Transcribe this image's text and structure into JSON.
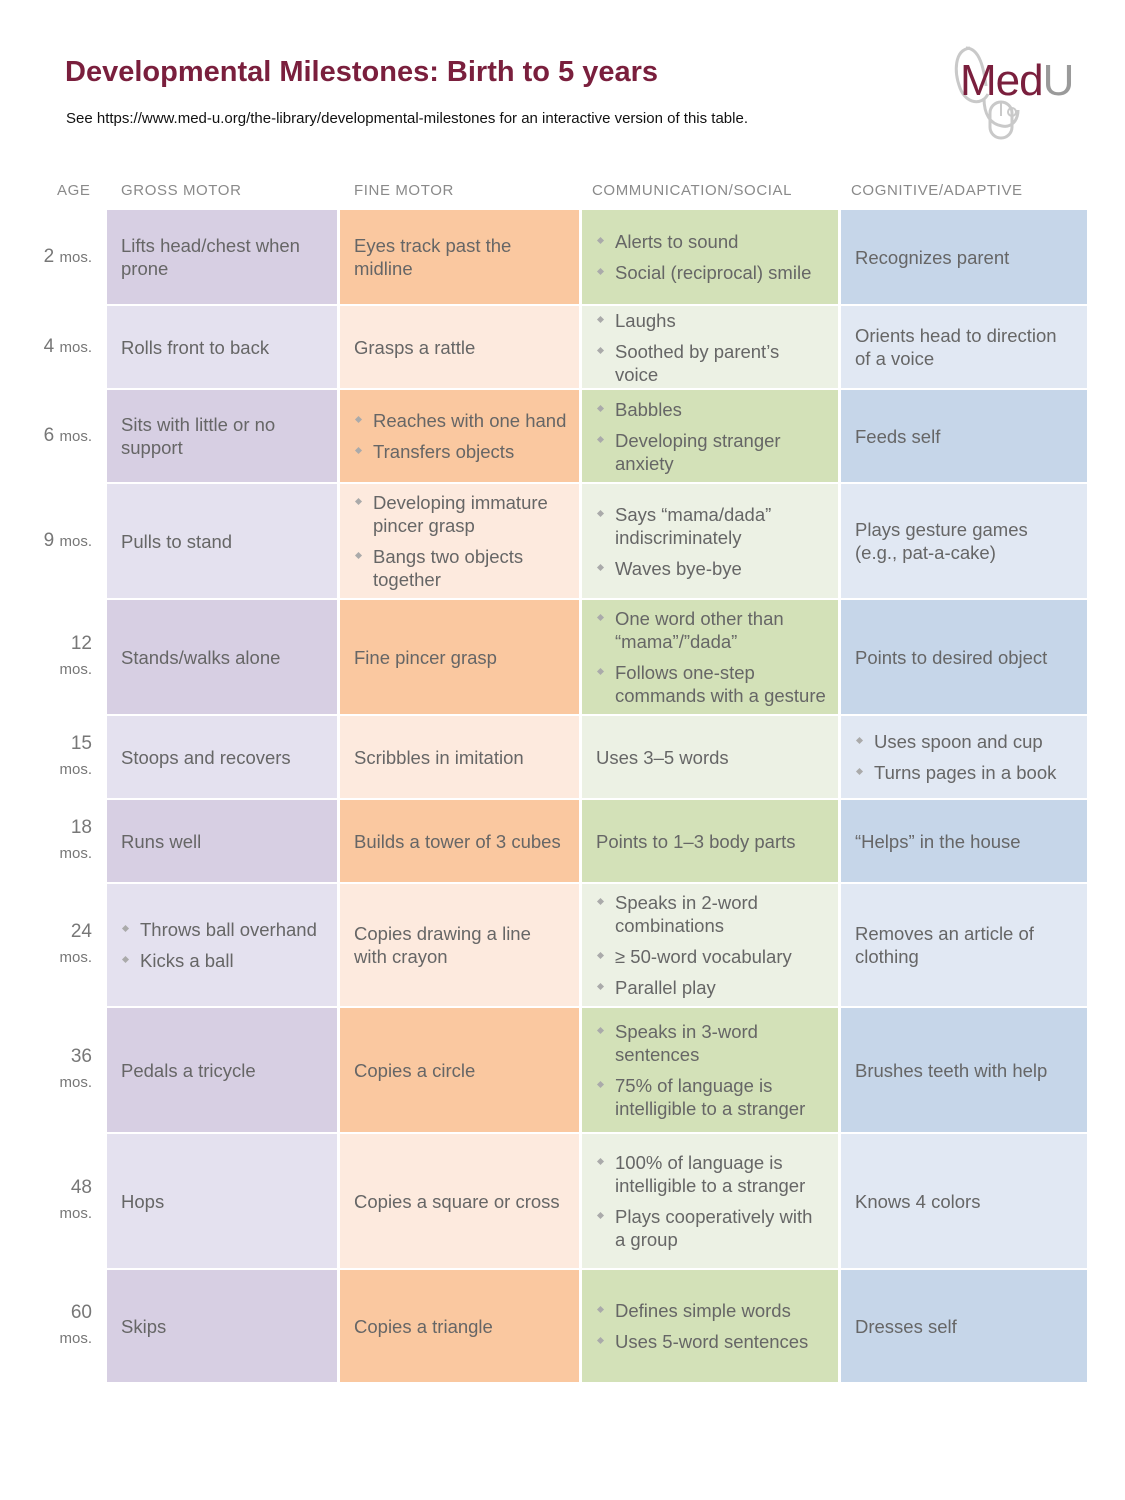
{
  "page": {
    "title": "Developmental Milestones: Birth to 5 years",
    "subtitle": "See https://www.med-u.org/the-library/developmental-milestones for an interactive version of this table.",
    "logo": {
      "text_med": "Med",
      "text_u": "U",
      "icon": "stethoscope-mouse-icon"
    }
  },
  "headers": {
    "age": "AGE",
    "gross": "GROSS MOTOR",
    "fine": "FINE MOTOR",
    "comm": "COMMUNICATION/SOCIAL",
    "cog": "COGNITIVE/ADAPTIVE"
  },
  "colors": {
    "title": "#7a1f3d",
    "gross_dark": "#d7cfe3",
    "gross_light": "#e4e1ef",
    "fine_dark": "#fac8a0",
    "fine_light": "#fdeade",
    "comm_dark": "#d3e1b8",
    "comm_light": "#ecf1e4",
    "cog_dark": "#c6d6e9",
    "cog_light": "#e1e8f3"
  },
  "rows": [
    {
      "age": "2",
      "unit": "mos.",
      "gross": [
        "Lifts head/chest when prone"
      ],
      "fine": [
        "Eyes track past the midline"
      ],
      "comm": [
        "Alerts to sound",
        "Social (reciprocal) smile"
      ],
      "cog": [
        "Recognizes parent"
      ]
    },
    {
      "age": "4",
      "unit": "mos.",
      "gross": [
        "Rolls front to back"
      ],
      "fine": [
        "Grasps a rattle"
      ],
      "comm": [
        "Laughs",
        "Soothed by parent’s voice"
      ],
      "cog": [
        "Orients head to direction of a voice"
      ]
    },
    {
      "age": "6",
      "unit": "mos.",
      "gross": [
        "Sits with little or no support"
      ],
      "fine": [
        "Reaches with one hand",
        "Transfers objects"
      ],
      "comm": [
        "Babbles",
        "Developing stranger anxiety"
      ],
      "cog": [
        "Feeds self"
      ]
    },
    {
      "age": "9",
      "unit": "mos.",
      "gross": [
        "Pulls to stand"
      ],
      "fine": [
        "Developing immature pincer grasp",
        "Bangs two objects together"
      ],
      "comm": [
        "Says “mama/dada” indiscriminately",
        "Waves bye-bye"
      ],
      "cog": [
        "Plays gesture games (e.g., pat-a-cake)"
      ]
    },
    {
      "age": "12",
      "unit": "mos.",
      "gross": [
        "Stands/walks alone"
      ],
      "fine": [
        "Fine pincer grasp"
      ],
      "comm": [
        "One word other than “mama”/”dada”",
        "Follows one-step commands with a gesture"
      ],
      "cog": [
        "Points to desired object"
      ]
    },
    {
      "age": "15",
      "unit": "mos.",
      "gross": [
        "Stoops and recovers"
      ],
      "fine": [
        "Scribbles in imitation"
      ],
      "comm": [
        "Uses 3–5 words"
      ],
      "cog": [
        "Uses spoon and cup",
        "Turns pages in a book"
      ]
    },
    {
      "age": "18",
      "unit": "mos.",
      "gross": [
        "Runs well"
      ],
      "fine": [
        "Builds a tower of 3 cubes"
      ],
      "comm": [
        "Points to 1–3 body parts"
      ],
      "cog": [
        "“Helps” in the house"
      ]
    },
    {
      "age": "24",
      "unit": "mos.",
      "gross": [
        "Throws ball overhand",
        "Kicks a ball"
      ],
      "fine": [
        "Copies drawing a line with crayon"
      ],
      "comm": [
        "Speaks in 2-word combinations",
        "≥ 50-word vocabulary",
        "Parallel play"
      ],
      "cog": [
        "Removes an article of clothing"
      ]
    },
    {
      "age": "36",
      "unit": "mos.",
      "gross": [
        "Pedals a tricycle"
      ],
      "fine": [
        "Copies a circle"
      ],
      "comm": [
        "Speaks in 3-word sentences",
        "75% of language is intelligible to a stranger"
      ],
      "cog": [
        "Brushes teeth with help"
      ]
    },
    {
      "age": "48",
      "unit": "mos.",
      "gross": [
        "Hops"
      ],
      "fine": [
        "Copies a square or cross"
      ],
      "comm": [
        "100% of language is intelligible to a stranger",
        "Plays cooperatively with a group"
      ],
      "cog": [
        "Knows 4 colors"
      ]
    },
    {
      "age": "60",
      "unit": "mos.",
      "gross": [
        "Skips"
      ],
      "fine": [
        "Copies a triangle"
      ],
      "comm": [
        "Defines simple words",
        "Uses 5-word sentences"
      ],
      "cog": [
        "Dresses self"
      ]
    }
  ]
}
